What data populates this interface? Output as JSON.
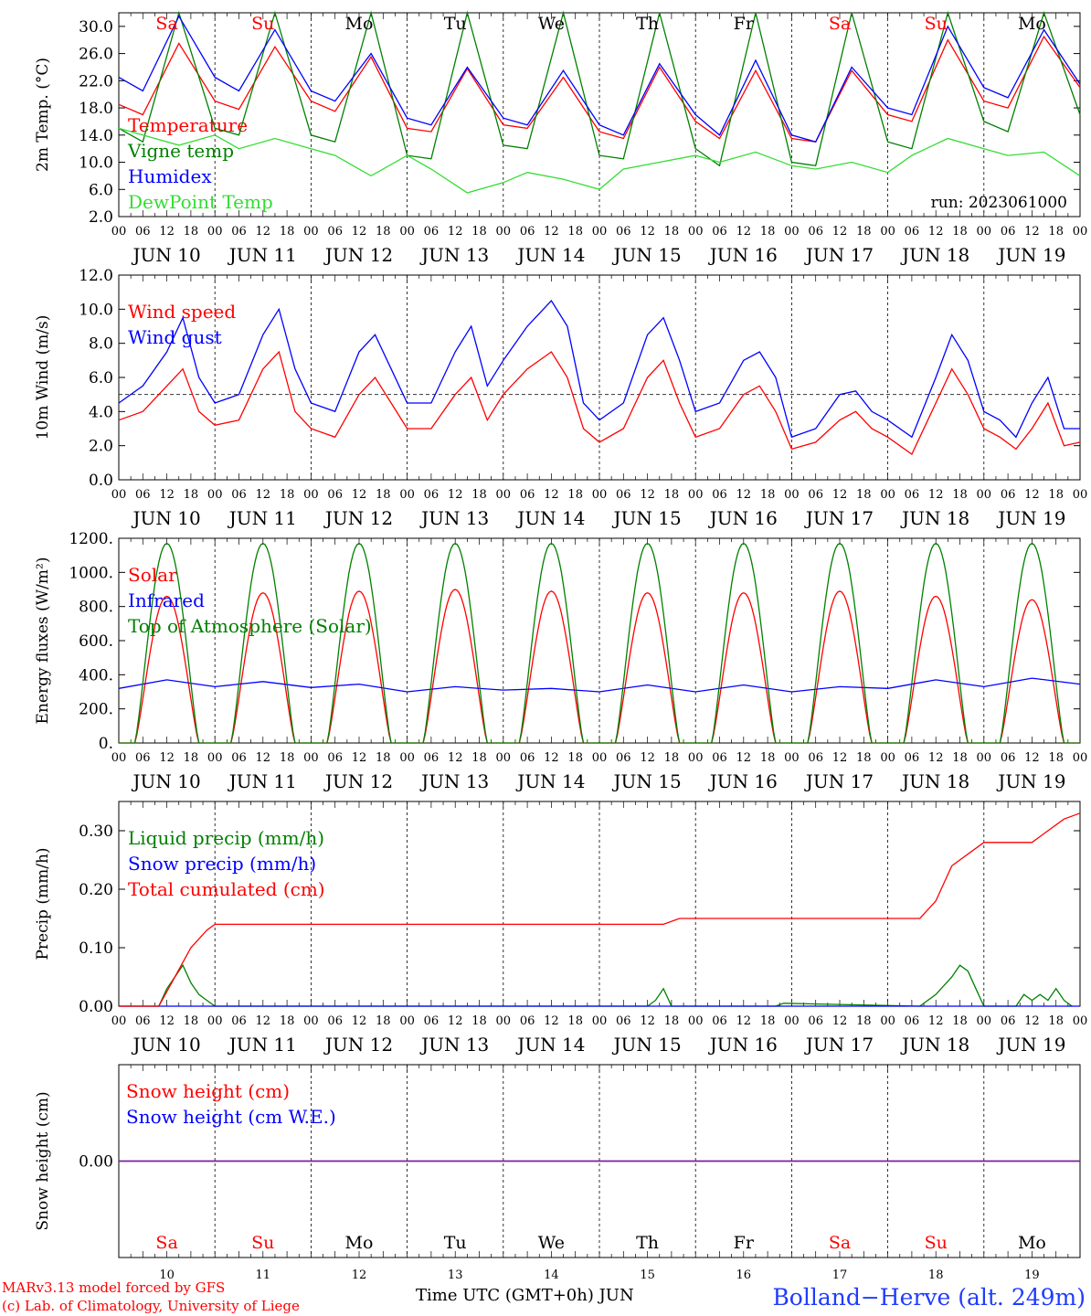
{
  "days": {
    "dates": [
      "10",
      "11",
      "12",
      "13",
      "14",
      "15",
      "16",
      "17",
      "18",
      "19"
    ],
    "headers": [
      "JUN 10",
      "JUN 11",
      "JUN 12",
      "JUN 13",
      "JUN 14",
      "JUN 15",
      "JUN 16",
      "JUN 17",
      "JUN 18",
      "JUN 19"
    ],
    "weekdays": [
      "Sa",
      "Su",
      "Mo",
      "Tu",
      "We",
      "Th",
      "Fr",
      "Sa",
      "Su",
      "Mo"
    ],
    "weekend": [
      true,
      true,
      false,
      false,
      false,
      false,
      false,
      true,
      true,
      false
    ],
    "hour_labels": [
      "00",
      "06",
      "12",
      "18"
    ],
    "final_label": "00"
  },
  "colors": {
    "red": "#ff0000",
    "green": "#008000",
    "light_green": "#33dd33",
    "blue": "#0000ff",
    "purple": "#7a1f9e",
    "gray": "#555555"
  },
  "run_label": "run: 2023061000",
  "footer": {
    "model": "MARv3.13 model forced by GFS",
    "lab": "(c) Lab. of Climatology, University of Liege",
    "xlabel": "Time UTC (GMT+0h) JUN",
    "station": "Bolland−Herve (alt. 249m)"
  },
  "chart_data": [
    {
      "type": "line",
      "ylabel": "2m Temp. (°C)",
      "ylim": [
        2,
        32
      ],
      "ticks": [
        "2.0",
        "6.0",
        "10.0",
        "14.0",
        "18.0",
        "22.0",
        "26.0",
        "30.0"
      ],
      "tick_values": [
        2,
        6,
        10,
        14,
        18,
        22,
        26,
        30
      ],
      "x_unit": "hours since 2023-06-10 00 UTC",
      "series": [
        {
          "name": "Temperature",
          "color": "#ff0000",
          "x": [
            0,
            6,
            15,
            24,
            30,
            39,
            48,
            54,
            63,
            72,
            78,
            87,
            96,
            102,
            111,
            120,
            126,
            135,
            144,
            150,
            159,
            168,
            174,
            183,
            192,
            198,
            207,
            216,
            222,
            231,
            240
          ],
          "y": [
            18.5,
            17.0,
            27.5,
            19.0,
            17.8,
            27.0,
            19.0,
            17.5,
            25.5,
            15.0,
            14.5,
            23.8,
            15.5,
            15.0,
            22.5,
            14.5,
            13.5,
            24.0,
            16.0,
            13.5,
            23.5,
            13.5,
            13.0,
            23.5,
            17.0,
            16.0,
            28.0,
            19.0,
            18.0,
            28.5,
            21.0
          ]
        },
        {
          "name": "Vigne temp",
          "color": "#008000",
          "x": [
            0,
            6,
            15,
            24,
            30,
            39,
            48,
            54,
            63,
            72,
            78,
            87,
            96,
            102,
            111,
            120,
            126,
            135,
            144,
            150,
            159,
            168,
            174,
            183,
            192,
            198,
            207,
            216,
            222,
            231,
            240
          ],
          "y": [
            15.0,
            13.0,
            32.0,
            15.0,
            14.0,
            32.0,
            14.0,
            13.0,
            32.0,
            11.0,
            10.5,
            32.0,
            12.5,
            12.0,
            32.0,
            11.0,
            10.5,
            32.0,
            12.0,
            9.5,
            32.0,
            10.0,
            9.5,
            32.0,
            13.0,
            12.0,
            32.0,
            16.0,
            14.5,
            32.0,
            17.0
          ]
        },
        {
          "name": "Humidex",
          "color": "#0000ff",
          "x": [
            0,
            6,
            15,
            24,
            30,
            39,
            48,
            54,
            63,
            72,
            78,
            87,
            96,
            102,
            111,
            120,
            126,
            135,
            144,
            150,
            159,
            168,
            174,
            183,
            192,
            198,
            207,
            216,
            222,
            231,
            240
          ],
          "y": [
            22.5,
            20.5,
            31.5,
            22.5,
            20.5,
            29.5,
            20.5,
            19.0,
            26.0,
            16.5,
            15.5,
            24.0,
            16.5,
            15.5,
            23.5,
            15.5,
            14.0,
            24.5,
            17.0,
            14.0,
            25.0,
            14.0,
            13.0,
            24.0,
            18.0,
            17.0,
            30.0,
            21.0,
            19.5,
            29.5,
            21.5
          ]
        },
        {
          "name": "DewPoint Temp",
          "color": "#33dd33",
          "x": [
            0,
            6,
            15,
            24,
            30,
            39,
            48,
            54,
            63,
            72,
            78,
            87,
            96,
            102,
            111,
            120,
            126,
            135,
            144,
            150,
            159,
            168,
            174,
            183,
            192,
            198,
            207,
            216,
            222,
            231,
            240
          ],
          "y": [
            15.0,
            14.0,
            12.5,
            14.0,
            12.0,
            13.5,
            12.0,
            11.0,
            8.0,
            11.0,
            9.0,
            5.5,
            7.0,
            8.5,
            7.5,
            6.0,
            9.0,
            10.0,
            11.0,
            10.0,
            11.5,
            9.5,
            9.0,
            10.0,
            8.5,
            11.0,
            13.5,
            12.0,
            11.0,
            11.5,
            8.0
          ]
        }
      ]
    },
    {
      "type": "line",
      "ylabel": "10m Wind (m/s)",
      "ylim": [
        0,
        12
      ],
      "ticks": [
        "0.0",
        "2.0",
        "4.0",
        "6.0",
        "8.0",
        "10.0",
        "12.0"
      ],
      "tick_values": [
        0,
        2,
        4,
        6,
        8,
        10,
        12
      ],
      "reference_line": 5,
      "x_unit": "hours since 2023-06-10 00 UTC",
      "series": [
        {
          "name": "Wind speed",
          "color": "#ff0000",
          "x": [
            0,
            6,
            12,
            16,
            20,
            24,
            30,
            36,
            40,
            44,
            48,
            54,
            60,
            64,
            68,
            72,
            78,
            84,
            88,
            92,
            96,
            102,
            108,
            112,
            116,
            120,
            126,
            132,
            136,
            140,
            144,
            150,
            156,
            160,
            164,
            168,
            174,
            180,
            184,
            188,
            192,
            198,
            204,
            208,
            212,
            216,
            220,
            224,
            228,
            232,
            236,
            240
          ],
          "y": [
            3.5,
            4.0,
            5.5,
            6.5,
            4.0,
            3.2,
            3.5,
            6.5,
            7.5,
            4.0,
            3.0,
            2.5,
            5.0,
            6.0,
            4.5,
            3.0,
            3.0,
            5.0,
            6.0,
            3.5,
            5.0,
            6.5,
            7.5,
            6.0,
            3.0,
            2.2,
            3.0,
            6.0,
            7.0,
            4.5,
            2.5,
            3.0,
            5.0,
            5.5,
            4.0,
            1.8,
            2.2,
            3.5,
            4.0,
            3.0,
            2.5,
            1.5,
            4.5,
            6.5,
            5.0,
            3.0,
            2.5,
            1.8,
            3.0,
            4.5,
            2.0,
            2.2
          ]
        },
        {
          "name": "Wind gust",
          "color": "#0000ff",
          "x": [
            0,
            6,
            12,
            16,
            20,
            24,
            30,
            36,
            40,
            44,
            48,
            54,
            60,
            64,
            68,
            72,
            78,
            84,
            88,
            92,
            96,
            102,
            108,
            112,
            116,
            120,
            126,
            132,
            136,
            140,
            144,
            150,
            156,
            160,
            164,
            168,
            174,
            180,
            184,
            188,
            192,
            198,
            204,
            208,
            212,
            216,
            220,
            224,
            228,
            232,
            236,
            240
          ],
          "y": [
            4.5,
            5.5,
            7.5,
            9.5,
            6.0,
            4.5,
            5.0,
            8.5,
            10.0,
            6.5,
            4.5,
            4.0,
            7.5,
            8.5,
            6.5,
            4.5,
            4.5,
            7.5,
            9.0,
            5.5,
            7.0,
            9.0,
            10.5,
            9.0,
            4.5,
            3.5,
            4.5,
            8.5,
            9.5,
            7.0,
            4.0,
            4.5,
            7.0,
            7.5,
            6.0,
            2.5,
            3.0,
            5.0,
            5.2,
            4.0,
            3.5,
            2.5,
            6.0,
            8.5,
            7.0,
            4.0,
            3.5,
            2.5,
            4.5,
            6.0,
            3.0,
            3.0
          ]
        }
      ]
    },
    {
      "type": "line",
      "ylabel": "Energy fluxes (W/m²)",
      "ylim": [
        0,
        1200
      ],
      "ticks": [
        "0.",
        "200.",
        "400.",
        "600.",
        "800.",
        "1000.",
        "1200."
      ],
      "tick_values": [
        0,
        200,
        400,
        600,
        800,
        1000,
        1200
      ],
      "x_unit": "hours since 2023-06-10 00 UTC",
      "daylight_hours": [
        4,
        20
      ],
      "series": [
        {
          "name": "Solar",
          "color": "#ff0000",
          "daily_peak": [
            860,
            880,
            890,
            900,
            890,
            880,
            880,
            890,
            860,
            840
          ]
        },
        {
          "name": "Infrared",
          "color": "#0000ff",
          "x": [
            0,
            12,
            24,
            36,
            48,
            60,
            72,
            84,
            96,
            108,
            120,
            132,
            144,
            156,
            168,
            180,
            192,
            204,
            216,
            228,
            240
          ],
          "y": [
            320,
            370,
            330,
            360,
            325,
            345,
            300,
            330,
            310,
            320,
            300,
            340,
            300,
            340,
            300,
            330,
            320,
            370,
            330,
            380,
            345
          ]
        },
        {
          "name": "Top of Atmosphere (Solar)",
          "color": "#008000",
          "daily_peak": [
            1170,
            1170,
            1170,
            1170,
            1170,
            1170,
            1170,
            1170,
            1170,
            1170
          ]
        }
      ]
    },
    {
      "type": "line",
      "ylabel": "Precip (mm/h)",
      "ylim": [
        0,
        0.35
      ],
      "ticks": [
        "0.00",
        "0.10",
        "0.20",
        "0.30"
      ],
      "tick_values": [
        0,
        0.1,
        0.2,
        0.3
      ],
      "x_unit": "hours since 2023-06-10 00 UTC",
      "series": [
        {
          "name": "Liquid precip (mm/h)",
          "color": "#008000",
          "x": [
            0,
            10,
            12,
            14,
            16,
            18,
            20,
            22,
            24,
            132,
            134,
            136,
            138,
            164,
            166,
            200,
            204,
            208,
            210,
            212,
            214,
            216,
            224,
            226,
            228,
            230,
            232,
            234,
            236,
            238
          ],
          "y": [
            0,
            0,
            0.03,
            0.05,
            0.07,
            0.04,
            0.02,
            0.01,
            0,
            0,
            0.01,
            0.03,
            0,
            0,
            0.005,
            0,
            0.02,
            0.05,
            0.07,
            0.06,
            0.03,
            0,
            0,
            0.02,
            0.01,
            0.02,
            0.01,
            0.03,
            0.01,
            0
          ]
        },
        {
          "name": "Snow precip (mm/h)",
          "color": "#0000ff",
          "x": [
            0,
            240
          ],
          "y": [
            0,
            0
          ]
        },
        {
          "name": "Total cumulated (cm)",
          "color": "#ff0000",
          "x": [
            0,
            10,
            14,
            18,
            22,
            24,
            130,
            136,
            140,
            168,
            192,
            200,
            204,
            208,
            216,
            228,
            232,
            236,
            240
          ],
          "y": [
            0,
            0,
            0.05,
            0.1,
            0.13,
            0.14,
            0.14,
            0.14,
            0.15,
            0.15,
            0.15,
            0.15,
            0.18,
            0.24,
            0.28,
            0.28,
            0.3,
            0.32,
            0.33
          ]
        }
      ]
    },
    {
      "type": "line",
      "ylabel": "Snow height (cm)",
      "ylim": [
        -1,
        1
      ],
      "ticks": [
        "0.00"
      ],
      "tick_values": [
        0
      ],
      "x_unit": "hours since 2023-06-10 00 UTC",
      "series": [
        {
          "name": "Snow height (cm)",
          "color": "#ff0000",
          "x": [
            0,
            240
          ],
          "y": [
            0,
            0
          ]
        },
        {
          "name": "Snow height (cm W.E.)",
          "color": "#0000ff",
          "x": [
            0,
            240
          ],
          "y": [
            0,
            0
          ]
        }
      ]
    }
  ]
}
